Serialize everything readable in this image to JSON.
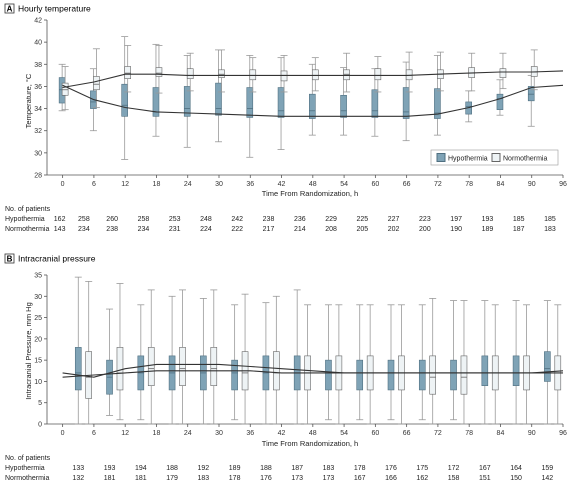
{
  "colors": {
    "hypothermia": "#7FA3B6",
    "hypothermia_stroke": "#4f6f80",
    "normothermia": "#EEF3F5",
    "normothermia_stroke": "#666666",
    "axis": "#555555",
    "whisker": "#999999",
    "line": "#333333"
  },
  "chart_data": [
    {
      "type": "box",
      "panel_letter": "A",
      "title": "Hourly temperature",
      "xlabel": "Time From Randomization, h",
      "ylabel": "Temperature, °C",
      "xlim": [
        -3,
        96
      ],
      "ylim": [
        28,
        42
      ],
      "xticks": [
        0,
        6,
        12,
        18,
        24,
        30,
        36,
        42,
        48,
        54,
        60,
        66,
        72,
        78,
        84,
        90,
        96
      ],
      "yticks": [
        28,
        30,
        32,
        34,
        36,
        38,
        40,
        42
      ],
      "legend": [
        "Hypothermia",
        "Normothermia"
      ],
      "legend_position": "bottom-right",
      "hypothermia": {
        "x": [
          0,
          6,
          12,
          18,
          24,
          30,
          36,
          42,
          48,
          54,
          60,
          66,
          72,
          78,
          84,
          90
        ],
        "boxes": [
          {
            "min": 33.8,
            "q1": 34.5,
            "med": 35.7,
            "q3": 36.8,
            "max": 38.0
          },
          {
            "min": 32.0,
            "q1": 34.0,
            "med": 34.6,
            "q3": 35.6,
            "max": 37.6
          },
          {
            "min": 29.4,
            "q1": 33.3,
            "med": 34.3,
            "q3": 36.2,
            "max": 40.5
          },
          {
            "min": 31.5,
            "q1": 33.3,
            "med": 33.7,
            "q3": 35.9,
            "max": 39.8
          },
          {
            "min": 30.5,
            "q1": 33.3,
            "med": 34.0,
            "q3": 36.0,
            "max": 38.8
          },
          {
            "min": 31.0,
            "q1": 33.4,
            "med": 34.0,
            "q3": 36.3,
            "max": 39.3
          },
          {
            "min": 29.6,
            "q1": 33.2,
            "med": 34.0,
            "q3": 35.9,
            "max": 38.8
          },
          {
            "min": 30.3,
            "q1": 33.2,
            "med": 33.8,
            "q3": 35.9,
            "max": 38.6
          },
          {
            "min": 31.6,
            "q1": 33.1,
            "med": 33.8,
            "q3": 35.3,
            "max": 38.0
          },
          {
            "min": 31.6,
            "q1": 33.2,
            "med": 33.8,
            "q3": 35.2,
            "max": 37.7
          },
          {
            "min": 31.5,
            "q1": 33.2,
            "med": 33.8,
            "q3": 35.7,
            "max": 37.6
          },
          {
            "min": 31.1,
            "q1": 33.1,
            "med": 33.7,
            "q3": 35.9,
            "max": 38.2
          },
          {
            "min": 31.6,
            "q1": 33.1,
            "med": 33.6,
            "q3": 35.8,
            "max": 38.8
          },
          {
            "min": 32.8,
            "q1": 33.5,
            "med": 34.2,
            "q3": 34.6,
            "max": 35.6
          },
          {
            "min": 33.4,
            "q1": 33.9,
            "med": 34.9,
            "q3": 35.3,
            "max": 36.6
          },
          {
            "min": 32.4,
            "q1": 34.7,
            "med": 35.3,
            "q3": 36.0,
            "max": 37.0
          }
        ],
        "trend": [
          36.1,
          34.8,
          34.1,
          33.7,
          33.6,
          33.5,
          33.4,
          33.3,
          33.3,
          33.3,
          33.3,
          33.3,
          33.5,
          34.1,
          34.9,
          35.9,
          36.1
        ]
      },
      "normothermia": {
        "x": [
          0,
          6,
          12,
          18,
          24,
          30,
          36,
          42,
          48,
          54,
          60,
          66,
          72,
          78,
          84,
          90
        ],
        "boxes": [
          {
            "min": 33.9,
            "q1": 35.2,
            "med": 35.7,
            "q3": 36.3,
            "max": 37.8
          },
          {
            "min": 34.1,
            "q1": 35.7,
            "med": 36.2,
            "q3": 36.9,
            "max": 39.4
          },
          {
            "min": 35.5,
            "q1": 36.7,
            "med": 37.2,
            "q3": 37.8,
            "max": 39.7
          },
          {
            "min": 35.4,
            "q1": 36.9,
            "med": 37.2,
            "q3": 37.7,
            "max": 39.7
          },
          {
            "min": 35.6,
            "q1": 36.7,
            "med": 37.0,
            "q3": 37.6,
            "max": 39.0
          },
          {
            "min": 35.5,
            "q1": 36.8,
            "med": 37.1,
            "q3": 37.5,
            "max": 39.3
          },
          {
            "min": 35.5,
            "q1": 36.6,
            "med": 37.0,
            "q3": 37.5,
            "max": 38.6
          },
          {
            "min": 35.5,
            "q1": 36.5,
            "med": 37.0,
            "q3": 37.4,
            "max": 38.8
          },
          {
            "min": 35.6,
            "q1": 36.6,
            "med": 37.0,
            "q3": 37.5,
            "max": 38.6
          },
          {
            "min": 35.5,
            "q1": 36.6,
            "med": 37.1,
            "q3": 37.5,
            "max": 39.0
          },
          {
            "min": 35.5,
            "q1": 36.6,
            "med": 37.0,
            "q3": 37.6,
            "max": 38.7
          },
          {
            "min": 35.5,
            "q1": 36.6,
            "med": 37.0,
            "q3": 37.5,
            "max": 39.1
          },
          {
            "min": 35.6,
            "q1": 36.7,
            "med": 37.1,
            "q3": 37.5,
            "max": 39.1
          },
          {
            "min": 35.6,
            "q1": 36.8,
            "med": 37.2,
            "q3": 37.7,
            "max": 39.0
          },
          {
            "min": 35.8,
            "q1": 36.8,
            "med": 37.3,
            "q3": 37.6,
            "max": 39.0
          },
          {
            "min": 35.7,
            "q1": 36.9,
            "med": 37.3,
            "q3": 37.8,
            "max": 39.3
          }
        ],
        "trend": [
          35.9,
          36.4,
          37.1,
          37.1,
          37.0,
          37.0,
          37.0,
          37.0,
          37.0,
          37.0,
          37.0,
          37.0,
          37.1,
          37.2,
          37.3,
          37.3,
          37.4
        ]
      },
      "table": {
        "heading": "No. of patients",
        "rows": [
          {
            "label": "Hypothermia",
            "values": [
              "162",
              "258",
              "260",
              "258",
              "253",
              "248",
              "242",
              "238",
              "236",
              "229",
              "225",
              "227",
              "223",
              "197",
              "193",
              "185",
              "185"
            ]
          },
          {
            "label": "Normothermia",
            "values": [
              "143",
              "234",
              "238",
              "234",
              "231",
              "224",
              "222",
              "217",
              "214",
              "208",
              "205",
              "202",
              "200",
              "190",
              "189",
              "187",
              "183"
            ]
          }
        ]
      }
    },
    {
      "type": "box",
      "panel_letter": "B",
      "title": "Intracranial pressure",
      "xlabel": "Time From Randomization, h",
      "ylabel": "Intracranial Pressure, mm Hg",
      "xlim": [
        -3,
        96
      ],
      "ylim": [
        0,
        35
      ],
      "xticks": [
        0,
        6,
        12,
        18,
        24,
        30,
        36,
        42,
        48,
        54,
        60,
        66,
        72,
        78,
        84,
        90,
        96
      ],
      "yticks": [
        0,
        5,
        10,
        15,
        20,
        25,
        30,
        35
      ],
      "hypothermia": {
        "x": [
          3,
          9,
          15,
          21,
          27,
          33,
          39,
          45,
          51,
          57,
          63,
          69,
          75,
          81,
          87,
          93
        ],
        "boxes": [
          {
            "min": 0,
            "q1": 8,
            "med": 12,
            "q3": 18,
            "max": 34.5
          },
          {
            "min": 2,
            "q1": 7,
            "med": 11,
            "q3": 15,
            "max": 27
          },
          {
            "min": 1,
            "q1": 8,
            "med": 12,
            "q3": 16,
            "max": 28
          },
          {
            "min": 0,
            "q1": 8,
            "med": 12,
            "q3": 16,
            "max": 30
          },
          {
            "min": 0,
            "q1": 8,
            "med": 12,
            "q3": 16,
            "max": 29.5
          },
          {
            "min": 1,
            "q1": 8,
            "med": 12,
            "q3": 15,
            "max": 28
          },
          {
            "min": 0,
            "q1": 8,
            "med": 12,
            "q3": 16,
            "max": 28.5
          },
          {
            "min": 0,
            "q1": 8,
            "med": 12,
            "q3": 16,
            "max": 31.5
          },
          {
            "min": 1,
            "q1": 8,
            "med": 12,
            "q3": 15,
            "max": 28
          },
          {
            "min": 1,
            "q1": 8,
            "med": 12,
            "q3": 15,
            "max": 28
          },
          {
            "min": 1,
            "q1": 8,
            "med": 12,
            "q3": 15,
            "max": 28
          },
          {
            "min": 1,
            "q1": 8,
            "med": 12,
            "q3": 15,
            "max": 28
          },
          {
            "min": 1,
            "q1": 8,
            "med": 12,
            "q3": 15,
            "max": 29
          },
          {
            "min": 0,
            "q1": 9,
            "med": 12,
            "q3": 16,
            "max": 29
          },
          {
            "min": 0,
            "q1": 9,
            "med": 12,
            "q3": 16,
            "max": 29
          },
          {
            "min": 0,
            "q1": 10,
            "med": 13,
            "q3": 17,
            "max": 29
          }
        ],
        "trend": [
          12,
          11,
          13,
          14,
          14,
          14,
          13.5,
          13,
          12.5,
          12,
          12,
          12,
          12,
          12,
          12,
          12,
          12.5
        ]
      },
      "normothermia": {
        "x": [
          5,
          11,
          17,
          23,
          29,
          35,
          41,
          47,
          53,
          59,
          65,
          71,
          77,
          83,
          89,
          95
        ],
        "boxes": [
          {
            "min": 0,
            "q1": 6,
            "med": 11,
            "q3": 17,
            "max": 33.5
          },
          {
            "min": 1,
            "q1": 8,
            "med": 12,
            "q3": 18,
            "max": 33
          },
          {
            "min": 0,
            "q1": 9,
            "med": 13,
            "q3": 18,
            "max": 31.5
          },
          {
            "min": 0,
            "q1": 9,
            "med": 13,
            "q3": 18,
            "max": 31.5
          },
          {
            "min": 0,
            "q1": 9,
            "med": 13,
            "q3": 18,
            "max": 31.5
          },
          {
            "min": 0,
            "q1": 8,
            "med": 12,
            "q3": 17,
            "max": 30.5
          },
          {
            "min": 0,
            "q1": 8,
            "med": 12,
            "q3": 17,
            "max": 30
          },
          {
            "min": 0,
            "q1": 8,
            "med": 12,
            "q3": 16,
            "max": 28
          },
          {
            "min": 0,
            "q1": 8,
            "med": 12,
            "q3": 16,
            "max": 28
          },
          {
            "min": 0,
            "q1": 8,
            "med": 12,
            "q3": 16,
            "max": 28
          },
          {
            "min": 0,
            "q1": 8,
            "med": 12,
            "q3": 16,
            "max": 28
          },
          {
            "min": 0,
            "q1": 7,
            "med": 11,
            "q3": 16,
            "max": 29.5
          },
          {
            "min": 0,
            "q1": 7,
            "med": 11,
            "q3": 16,
            "max": 29
          },
          {
            "min": 0,
            "q1": 8,
            "med": 12,
            "q3": 16,
            "max": 28
          },
          {
            "min": 0,
            "q1": 8,
            "med": 12,
            "q3": 16,
            "max": 28
          },
          {
            "min": 0,
            "q1": 8,
            "med": 12,
            "q3": 16,
            "max": 28
          }
        ],
        "trend": [
          11,
          11.5,
          12,
          12.5,
          12.5,
          12.5,
          12.5,
          12,
          12,
          12,
          12,
          12,
          12,
          12,
          12,
          12,
          12
        ]
      },
      "table": {
        "heading": "No. of patients",
        "rows": [
          {
            "label": "Hypothermia",
            "values": [
              "133",
              "193",
              "194",
              "188",
              "192",
              "189",
              "188",
              "187",
              "183",
              "178",
              "176",
              "175",
              "172",
              "167",
              "164",
              "159"
            ]
          },
          {
            "label": "Normothermia",
            "values": [
              "132",
              "181",
              "181",
              "179",
              "183",
              "178",
              "176",
              "173",
              "173",
              "167",
              "166",
              "162",
              "158",
              "151",
              "150",
              "142"
            ]
          }
        ]
      }
    }
  ]
}
